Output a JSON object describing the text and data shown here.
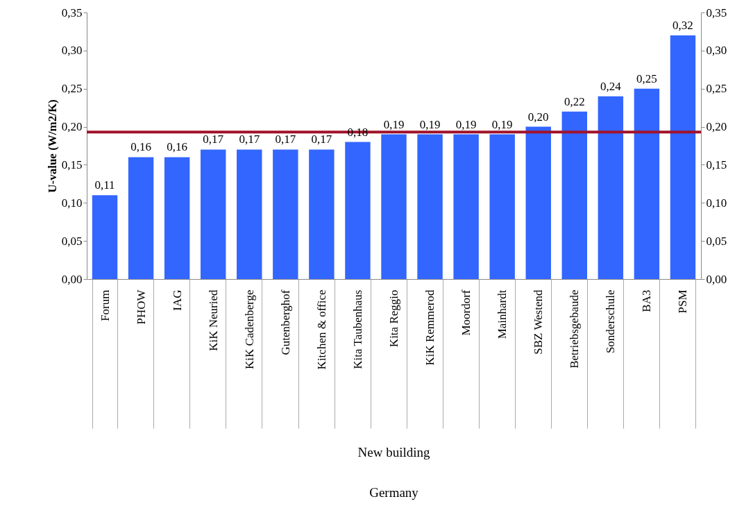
{
  "chart_data": {
    "type": "bar",
    "ylabel": "U-value (W/m2/K)",
    "categories": [
      "Forum",
      "PHOW",
      "IAG",
      "KiK Neuried",
      "KiK Cadenberge",
      "Gutenberghof",
      "Kitchen & office",
      "Kita Taubenhaus",
      "Kita Reggio",
      "KiK Remmerod",
      "Moordorf",
      "Mainhardt",
      "SBZ Westend",
      "Betriebsgebaude",
      "Sonderschule",
      "BA3",
      "PSM"
    ],
    "values": [
      0.11,
      0.16,
      0.16,
      0.17,
      0.17,
      0.17,
      0.17,
      0.18,
      0.19,
      0.19,
      0.19,
      0.19,
      0.2,
      0.22,
      0.24,
      0.25,
      0.32
    ],
    "value_labels": [
      "0,11",
      "0,16",
      "0,16",
      "0,17",
      "0,17",
      "0,17",
      "0,17",
      "0,18",
      "0,19",
      "0,19",
      "0,19",
      "0,19",
      "0,20",
      "0,22",
      "0,24",
      "0,25",
      "0,32"
    ],
    "color": "#3366ff",
    "ylim": [
      0,
      0.35
    ],
    "yticks": [
      {
        "value": 0,
        "label": "0,00"
      },
      {
        "value": 0.05,
        "label": "0,05"
      },
      {
        "value": 0.1,
        "label": "0,10"
      },
      {
        "value": 0.15,
        "label": "0,15"
      },
      {
        "value": 0.2,
        "label": "0,20"
      },
      {
        "value": 0.25,
        "label": "0,25"
      },
      {
        "value": 0.3,
        "label": "0,30"
      },
      {
        "value": 0.35,
        "label": "0,35"
      }
    ],
    "y2lim": [
      0,
      0.35
    ],
    "y2ticks": [
      {
        "value": 0,
        "label": "0,00"
      },
      {
        "value": 0.05,
        "label": "0,05"
      },
      {
        "value": 0.1,
        "label": "0,10"
      },
      {
        "value": 0.15,
        "label": "0,15"
      },
      {
        "value": 0.2,
        "label": "0,20"
      },
      {
        "value": 0.25,
        "label": "0,25"
      },
      {
        "value": 0.3,
        "label": "0,30"
      },
      {
        "value": 0.35,
        "label": "0,35"
      }
    ],
    "ref_lines": [
      {
        "axis": "y",
        "value": 0.193,
        "color": "#a0132a"
      }
    ],
    "annotations": [
      "New building",
      "Germany"
    ],
    "grid": false
  }
}
